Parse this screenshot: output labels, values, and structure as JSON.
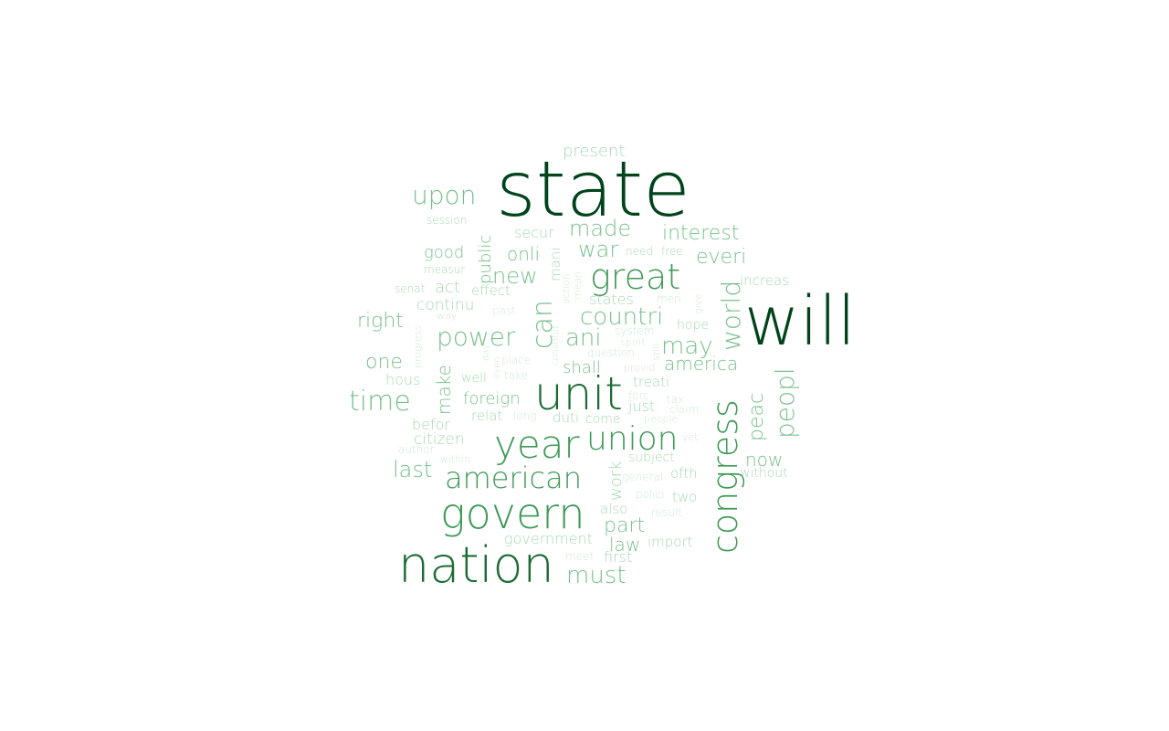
{
  "palette": {
    "darkest": "#00441b",
    "dark": "#1b6b33",
    "mid": "#3f9a58",
    "light": "#79c08c",
    "lighter": "#a8d8b2",
    "faint": "#cfe9d5"
  },
  "words": [
    {
      "text": "state",
      "weight": 100
    },
    {
      "text": "will",
      "weight": 88
    },
    {
      "text": "unit",
      "weight": 68
    },
    {
      "text": "nation",
      "weight": 66
    },
    {
      "text": "govern",
      "weight": 56
    },
    {
      "text": "year",
      "weight": 52
    },
    {
      "text": "congress",
      "weight": 50
    },
    {
      "text": "great",
      "weight": 46
    },
    {
      "text": "union",
      "weight": 44
    },
    {
      "text": "american",
      "weight": 40
    },
    {
      "text": "can",
      "weight": 38
    },
    {
      "text": "world",
      "weight": 36
    },
    {
      "text": "peopl",
      "weight": 36
    },
    {
      "text": "time",
      "weight": 34
    },
    {
      "text": "power",
      "weight": 34
    },
    {
      "text": "countri",
      "weight": 33
    },
    {
      "text": "upon",
      "weight": 32
    },
    {
      "text": "may",
      "weight": 31
    },
    {
      "text": "ani",
      "weight": 30
    },
    {
      "text": "made",
      "weight": 29
    },
    {
      "text": "interest",
      "weight": 29
    },
    {
      "text": "must",
      "weight": 29
    },
    {
      "text": "war",
      "weight": 28
    },
    {
      "text": "new",
      "weight": 28
    },
    {
      "text": "everi",
      "weight": 27
    },
    {
      "text": "part",
      "weight": 27
    },
    {
      "text": "right",
      "weight": 26
    },
    {
      "text": "one",
      "weight": 26
    },
    {
      "text": "last",
      "weight": 26
    },
    {
      "text": "peac",
      "weight": 26
    },
    {
      "text": "america",
      "weight": 25
    },
    {
      "text": "now",
      "weight": 25
    },
    {
      "text": "law",
      "weight": 24
    },
    {
      "text": "make",
      "weight": 24
    },
    {
      "text": "foreign",
      "weight": 23
    },
    {
      "text": "public",
      "weight": 22
    },
    {
      "text": "onli",
      "weight": 22
    },
    {
      "text": "good",
      "weight": 22
    },
    {
      "text": "shall",
      "weight": 22
    },
    {
      "text": "citizen",
      "weight": 21
    },
    {
      "text": "present",
      "weight": 21
    },
    {
      "text": "secur",
      "weight": 20
    },
    {
      "text": "continu",
      "weight": 20
    },
    {
      "text": "act",
      "weight": 20
    },
    {
      "text": "work",
      "weight": 20
    },
    {
      "text": "treati",
      "weight": 19
    },
    {
      "text": "states",
      "weight": 19
    },
    {
      "text": "increas",
      "weight": 19
    },
    {
      "text": "hous",
      "weight": 19
    },
    {
      "text": "befor",
      "weight": 19
    },
    {
      "text": "first",
      "weight": 19
    },
    {
      "text": "government",
      "weight": 19
    },
    {
      "text": "import",
      "weight": 19
    },
    {
      "text": "just",
      "weight": 18
    },
    {
      "text": "relat",
      "weight": 18
    },
    {
      "text": "effect",
      "weight": 18
    },
    {
      "text": "mani",
      "weight": 18
    },
    {
      "text": "duti",
      "weight": 18
    },
    {
      "text": "come",
      "weight": 18
    },
    {
      "text": "also",
      "weight": 18
    },
    {
      "text": "subject",
      "weight": 17
    },
    {
      "text": "ofth",
      "weight": 17
    },
    {
      "text": "two",
      "weight": 17
    },
    {
      "text": "hope",
      "weight": 17
    },
    {
      "text": "well",
      "weight": 17
    },
    {
      "text": "session",
      "weight": 16
    },
    {
      "text": "measur",
      "weight": 16
    },
    {
      "text": "senat",
      "weight": 16
    },
    {
      "text": "need",
      "weight": 16
    },
    {
      "text": "free",
      "weight": 16
    },
    {
      "text": "without",
      "weight": 16
    },
    {
      "text": "general",
      "weight": 15
    },
    {
      "text": "polici",
      "weight": 15
    },
    {
      "text": "result",
      "weight": 15
    },
    {
      "text": "meet",
      "weight": 15
    },
    {
      "text": "author",
      "weight": 15
    },
    {
      "text": "within",
      "weight": 15
    },
    {
      "text": "long",
      "weight": 15
    },
    {
      "text": "place",
      "weight": 15
    },
    {
      "text": "take",
      "weight": 15
    },
    {
      "text": "past",
      "weight": 15
    },
    {
      "text": "way",
      "weight": 14
    },
    {
      "text": "progress",
      "weight": 14
    },
    {
      "text": "action",
      "weight": 14
    },
    {
      "text": "mean",
      "weight": 14
    },
    {
      "text": "men",
      "weight": 14
    },
    {
      "text": "give",
      "weight": 14
    },
    {
      "text": "system",
      "weight": 14
    },
    {
      "text": "spirit",
      "weight": 14
    },
    {
      "text": "still",
      "weight": 14
    },
    {
      "text": "question",
      "weight": 14
    },
    {
      "text": "provid",
      "weight": 14
    },
    {
      "text": "constitut",
      "weight": 13
    },
    {
      "text": "forc",
      "weight": 14
    },
    {
      "text": "tax",
      "weight": 14
    },
    {
      "text": "claim",
      "weight": 14
    },
    {
      "text": "people",
      "weight": 14
    },
    {
      "text": "yet",
      "weight": 14
    },
    {
      "text": "day",
      "weight": 13
    },
    {
      "text": "even",
      "weight": 13
    }
  ]
}
